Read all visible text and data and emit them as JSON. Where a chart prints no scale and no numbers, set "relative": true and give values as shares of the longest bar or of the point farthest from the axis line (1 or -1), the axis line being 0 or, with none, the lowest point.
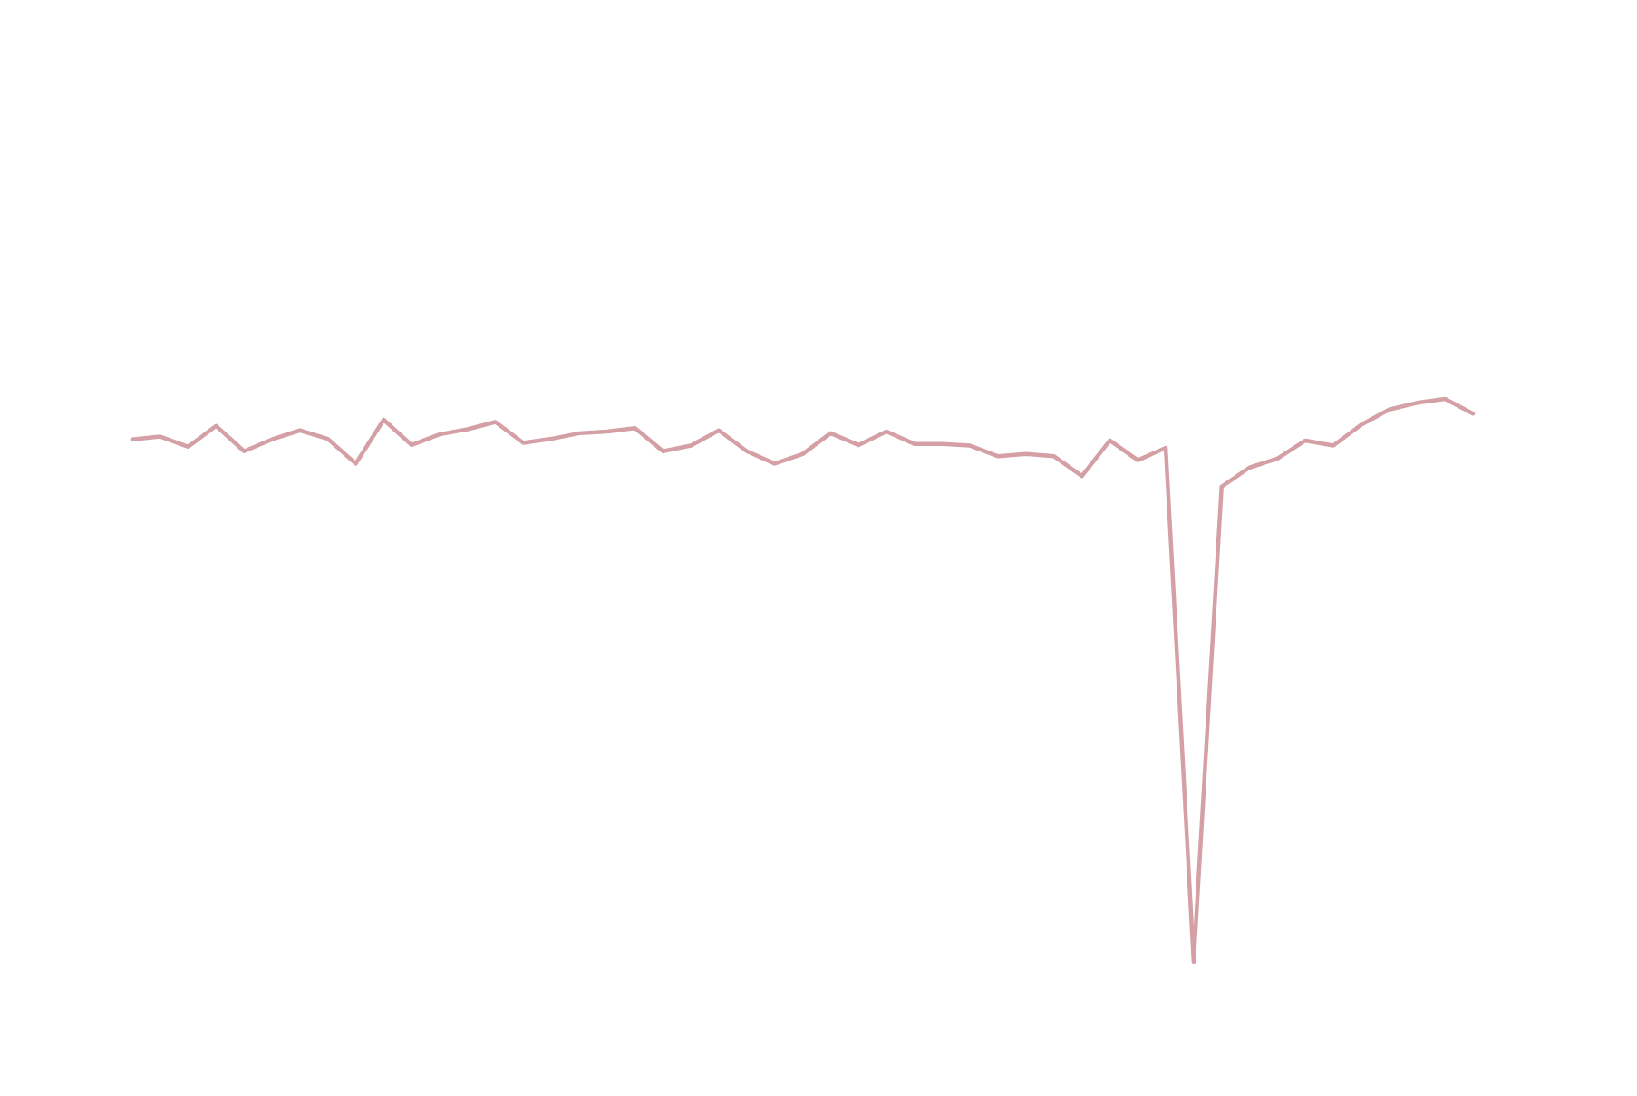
{
  "chart_data": {
    "type": "line",
    "relative": true,
    "categories": [
      null,
      null,
      null,
      null,
      null,
      null,
      null,
      null,
      null,
      null,
      null,
      null,
      null,
      null,
      null,
      null,
      null,
      null,
      null,
      null,
      null,
      null,
      null,
      null,
      null,
      null,
      null,
      null,
      null,
      null,
      null,
      null,
      null,
      null,
      null,
      null,
      null,
      null,
      null,
      null,
      null,
      null,
      null,
      null,
      null,
      null,
      null,
      null,
      null
    ],
    "series": [
      {
        "color": "#d4a0a6",
        "values": [
          0.928,
          0.933,
          0.915,
          0.952,
          0.907,
          0.928,
          0.944,
          0.929,
          0.885,
          0.963,
          0.918,
          0.937,
          0.946,
          0.959,
          0.922,
          0.929,
          0.939,
          0.942,
          0.948,
          0.907,
          0.917,
          0.944,
          0.907,
          0.885,
          0.902,
          0.939,
          0.918,
          0.942,
          0.92,
          0.92,
          0.917,
          0.898,
          0.902,
          0.898,
          0.863,
          0.926,
          0.891,
          0.913,
          0,
          0.844,
          0.878,
          0.894,
          0.926,
          0.917,
          0.954,
          0.981,
          0.993,
          1,
          0.974
        ]
      }
    ]
  }
}
